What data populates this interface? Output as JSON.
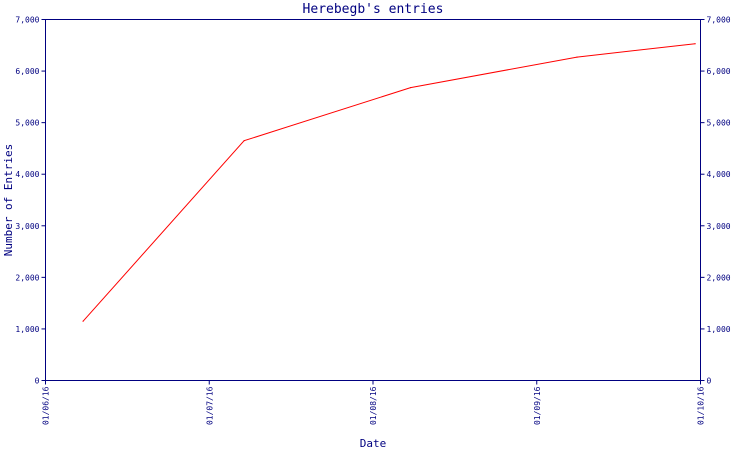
{
  "chart_data": {
    "type": "line",
    "title": "Herebegb's entries",
    "xlabel": "Date",
    "ylabel": "Number of Entries",
    "x_ticks": [
      "01/06/16",
      "01/07/16",
      "01/08/16",
      "01/09/16",
      "01/10/16"
    ],
    "x_range": [
      "2016-06-01",
      "2016-10-01"
    ],
    "ylim": [
      0,
      7000
    ],
    "y_ticks": [
      {
        "value": 0,
        "label": "0"
      },
      {
        "value": 1000,
        "label": "1,000"
      },
      {
        "value": 2000,
        "label": "2,000"
      },
      {
        "value": 3000,
        "label": "3,000"
      },
      {
        "value": 4000,
        "label": "4,000"
      },
      {
        "value": 5000,
        "label": "5,000"
      },
      {
        "value": 6000,
        "label": "6,000"
      },
      {
        "value": 7000,
        "label": "7,000"
      }
    ],
    "y_axis_sides": [
      "left",
      "right"
    ],
    "grid": false,
    "legend": "none",
    "series": [
      {
        "color": "#ff0000",
        "points": [
          {
            "x": "2016-06-08",
            "y": 1150
          },
          {
            "x": "2016-07-08",
            "y": 4650
          },
          {
            "x": "2016-08-08",
            "y": 5680
          },
          {
            "x": "2016-09-08",
            "y": 6270
          },
          {
            "x": "2016-09-30",
            "y": 6530
          }
        ]
      }
    ]
  }
}
